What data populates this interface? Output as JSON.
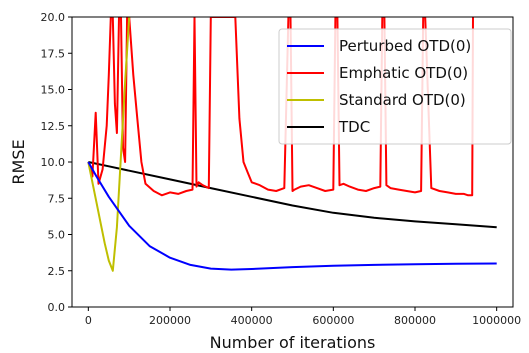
{
  "chart_data": {
    "type": "line",
    "title": "",
    "xlabel": "Number of iterations",
    "ylabel": "RMSE",
    "xlim": [
      -40000,
      1040000
    ],
    "ylim": [
      0,
      20
    ],
    "x_ticks": [
      0,
      200000,
      400000,
      600000,
      800000,
      1000000
    ],
    "x_tick_labels": [
      "0",
      "200000",
      "400000",
      "600000",
      "800000",
      "1000000"
    ],
    "y_ticks": [
      0,
      2.5,
      5,
      7.5,
      10,
      12.5,
      15,
      17.5,
      20
    ],
    "y_tick_labels": [
      "0.0",
      "2.5",
      "5.0",
      "7.5",
      "10.0",
      "12.5",
      "15.0",
      "17.5",
      "20.0"
    ],
    "grid": false,
    "legend_position": "top-right",
    "series": [
      {
        "name": "Perturbed OTD(0)",
        "color": "#0000ff",
        "x": [
          0,
          20000,
          50000,
          100000,
          150000,
          200000,
          250000,
          300000,
          350000,
          400000,
          500000,
          600000,
          700000,
          800000,
          900000,
          1000000
        ],
        "y": [
          10.0,
          9.0,
          7.6,
          5.6,
          4.2,
          3.4,
          2.9,
          2.65,
          2.58,
          2.62,
          2.75,
          2.85,
          2.9,
          2.95,
          2.98,
          3.0
        ]
      },
      {
        "name": "Emphatic OTD(0)",
        "color": "#ff0000",
        "x": [
          0,
          10000,
          18000,
          25000,
          35000,
          45000,
          50000,
          55000,
          60000,
          65000,
          70000,
          75000,
          80000,
          85000,
          90000,
          95000,
          100000,
          110000,
          120000,
          130000,
          140000,
          160000,
          180000,
          200000,
          220000,
          240000,
          255000,
          260000,
          265000,
          270000,
          280000,
          295000,
          300000,
          310000,
          320000,
          340000,
          360000,
          370000,
          380000,
          390000,
          400000,
          420000,
          440000,
          460000,
          480000,
          490000,
          495000,
          500000,
          505000,
          520000,
          540000,
          560000,
          580000,
          600000,
          605000,
          610000,
          615000,
          625000,
          640000,
          660000,
          680000,
          700000,
          715000,
          720000,
          725000,
          730000,
          740000,
          760000,
          780000,
          800000,
          815000,
          820000,
          825000,
          840000,
          860000,
          880000,
          900000,
          920000,
          930000,
          940000,
          942000
        ],
        "y": [
          10.0,
          9.0,
          13.4,
          8.5,
          9.5,
          12.5,
          16.0,
          20.0,
          20.0,
          14.0,
          12.0,
          20.0,
          20.0,
          11.0,
          10.0,
          20.0,
          20.0,
          16.0,
          13.0,
          10.0,
          8.5,
          8.0,
          7.7,
          7.9,
          7.8,
          8.0,
          8.1,
          20.0,
          8.3,
          8.6,
          8.4,
          8.2,
          20.0,
          20.0,
          20.0,
          20.0,
          20.0,
          13.0,
          10.0,
          9.3,
          8.6,
          8.4,
          8.1,
          8.0,
          8.2,
          20.0,
          20.0,
          8.0,
          8.1,
          8.3,
          8.4,
          8.2,
          8.0,
          8.1,
          20.0,
          20.0,
          8.4,
          8.5,
          8.3,
          8.1,
          8.0,
          8.2,
          8.3,
          20.0,
          20.0,
          8.4,
          8.2,
          8.1,
          8.0,
          7.9,
          8.0,
          20.0,
          20.0,
          8.2,
          8.0,
          7.9,
          7.8,
          7.8,
          7.7,
          7.7,
          20.0
        ]
      },
      {
        "name": "Standard OTD(0)",
        "color": "#bfbf00",
        "x": [
          0,
          10000,
          20000,
          30000,
          40000,
          50000,
          60000,
          70000,
          80000,
          90000,
          100000
        ],
        "y": [
          10.0,
          8.6,
          7.2,
          5.8,
          4.4,
          3.2,
          2.5,
          5.5,
          10.5,
          15.5,
          20.0
        ]
      },
      {
        "name": "TDC",
        "color": "#000000",
        "x": [
          0,
          50000,
          100000,
          200000,
          300000,
          400000,
          500000,
          600000,
          700000,
          800000,
          900000,
          1000000
        ],
        "y": [
          10.0,
          9.7,
          9.4,
          8.8,
          8.2,
          7.6,
          7.0,
          6.5,
          6.15,
          5.9,
          5.7,
          5.5
        ]
      }
    ]
  }
}
